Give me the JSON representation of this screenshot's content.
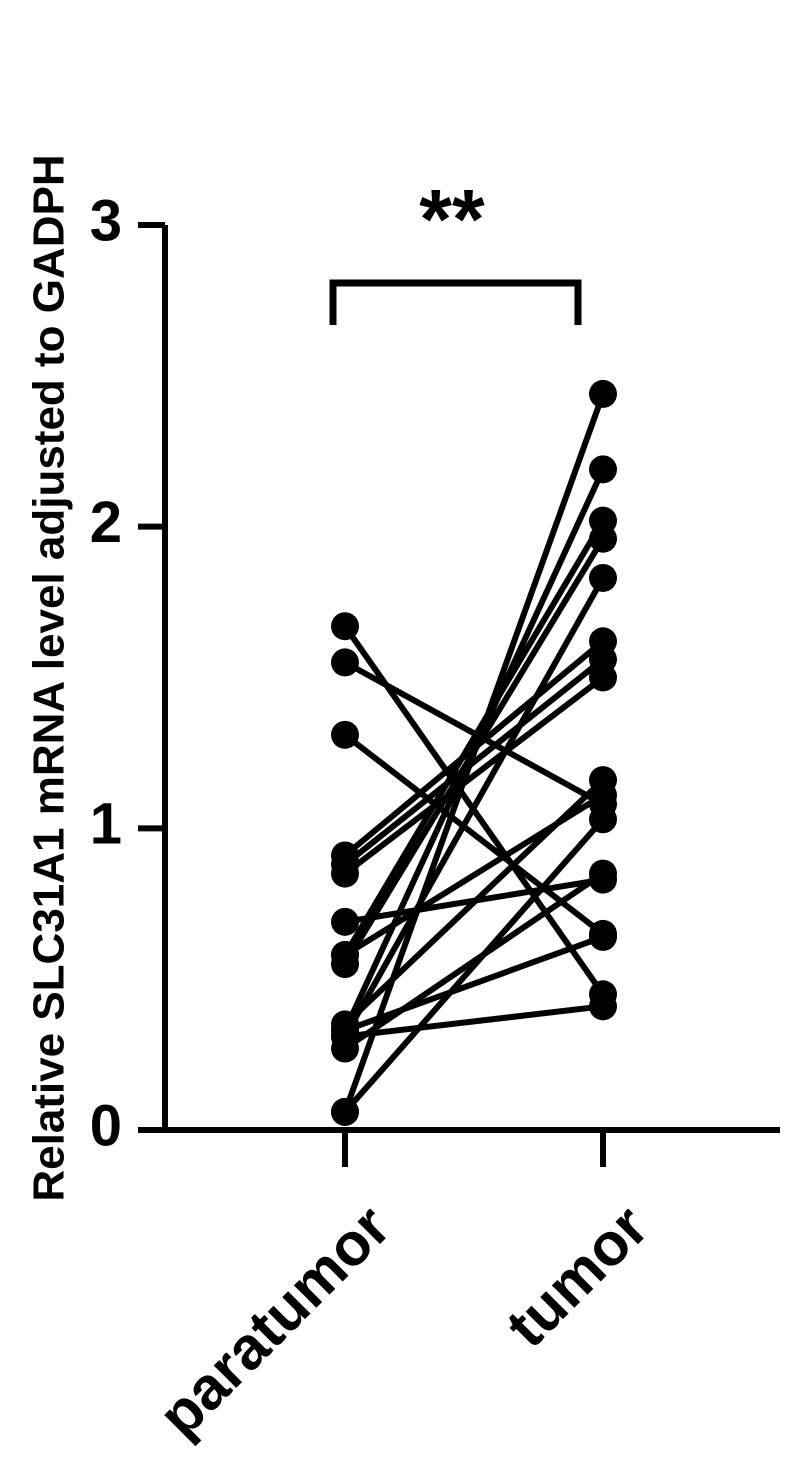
{
  "chart_data": {
    "type": "paired",
    "ylabel": "Relative SLC31A1 mRNA level adjusted to GADPH",
    "categories": [
      "paratumor",
      "tumor"
    ],
    "annotation": "**",
    "color": "#000000",
    "ylim": [
      0,
      3
    ],
    "yticks": [
      0,
      1,
      2,
      3
    ],
    "series": [
      {
        "values": [
          1.67,
          0.45
        ]
      },
      {
        "values": [
          1.55,
          1.08
        ]
      },
      {
        "values": [
          1.31,
          0.65
        ]
      },
      {
        "values": [
          0.91,
          1.62
        ]
      },
      {
        "values": [
          0.88,
          1.56
        ]
      },
      {
        "values": [
          0.85,
          1.5
        ]
      },
      {
        "values": [
          0.69,
          0.83
        ]
      },
      {
        "values": [
          0.58,
          2.02
        ]
      },
      {
        "values": [
          0.55,
          1.96
        ]
      },
      {
        "values": [
          0.58,
          1.11
        ]
      },
      {
        "values": [
          0.33,
          2.19
        ]
      },
      {
        "values": [
          0.31,
          1.83
        ]
      },
      {
        "values": [
          0.35,
          1.16
        ]
      },
      {
        "values": [
          0.27,
          0.85
        ]
      },
      {
        "values": [
          0.06,
          2.44
        ]
      },
      {
        "values": [
          0.06,
          1.03
        ]
      },
      {
        "values": [
          0.31,
          0.41
        ]
      },
      {
        "values": [
          0.33,
          0.64
        ]
      }
    ]
  }
}
